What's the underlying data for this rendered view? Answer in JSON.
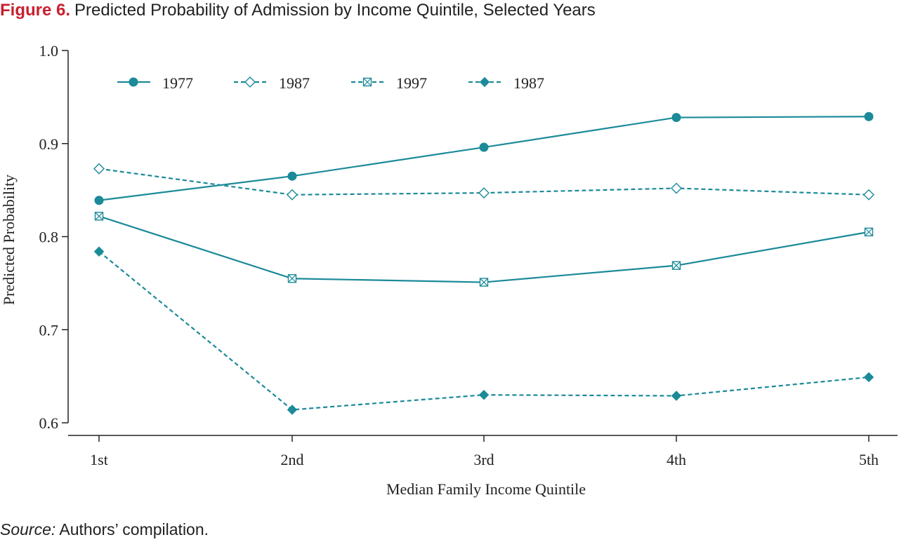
{
  "figure": {
    "label": "Figure 6.",
    "title": "Predicted Probability of Admission by Income Quintile, Selected Years"
  },
  "source": {
    "label": "Source:",
    "text": "Authors’ compilation."
  },
  "colors": {
    "series": "#1b8a99",
    "axis": "#222222",
    "figure_label": "#c8202f"
  },
  "chart_data": {
    "type": "line",
    "title": "",
    "xlabel": "Median Family Income Quintile",
    "ylabel": "Predicted Probability",
    "categories": [
      "1st",
      "2nd",
      "3rd",
      "4th",
      "5th"
    ],
    "ylim": [
      0.6,
      1.0
    ],
    "yticks": [
      0.6,
      0.7,
      0.8,
      0.9,
      1.0
    ],
    "ytick_labels": [
      "0.6",
      "0.7",
      "0.8",
      "0.9",
      "1.0"
    ],
    "grid": false,
    "legend_position": "top-left",
    "series": [
      {
        "name": "1977",
        "values": [
          0.839,
          0.865,
          0.896,
          0.928,
          0.929
        ],
        "line_style": "solid",
        "marker": "filled-circle"
      },
      {
        "name": "1987",
        "values": [
          0.873,
          0.845,
          0.847,
          0.852,
          0.845
        ],
        "line_style": "dashed",
        "marker": "open-diamond"
      },
      {
        "name": "1997",
        "values": [
          0.822,
          0.755,
          0.751,
          0.769,
          0.805
        ],
        "line_style": "solid",
        "legend_line_style": "dashed",
        "marker": "crossed-square"
      },
      {
        "name": "1987",
        "values": [
          0.784,
          0.614,
          0.63,
          0.629,
          0.649
        ],
        "line_style": "dashed",
        "marker": "filled-diamond"
      }
    ]
  }
}
